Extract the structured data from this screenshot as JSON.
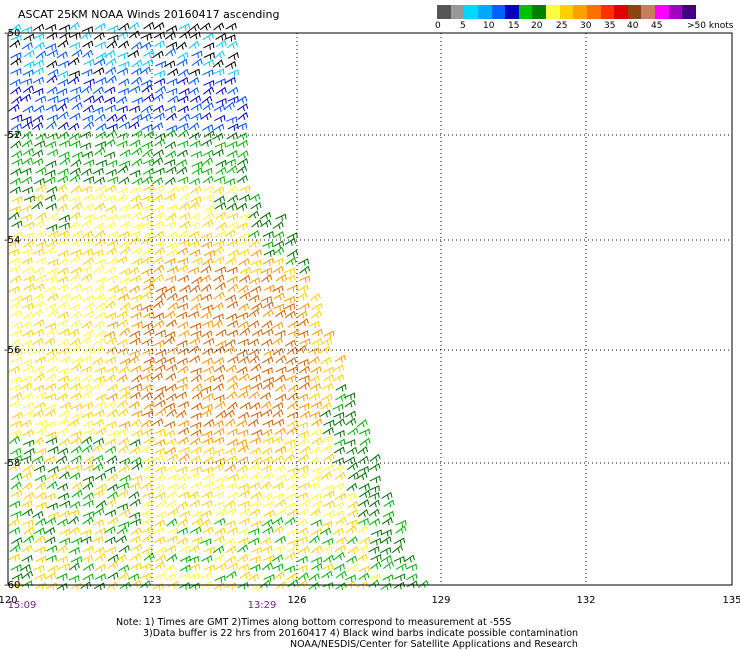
{
  "header": {
    "title": "ASCAT 25KM NOAA Winds 20160417 ascending"
  },
  "colorbar": {
    "labels": [
      "0",
      "5",
      "10",
      "15",
      "20",
      "25",
      "30",
      "35",
      "40",
      "45",
      ">50 knots"
    ],
    "colors": [
      "#555555",
      "#999999",
      "#00d8ff",
      "#00a8ff",
      "#0060ff",
      "#0000c0",
      "#00c000",
      "#008000",
      "#ffff40",
      "#ffd000",
      "#ffa000",
      "#ff7000",
      "#ff3000",
      "#e00000",
      "#8b4513",
      "#c08060",
      "#ff00ff",
      "#a000c0",
      "#400080"
    ]
  },
  "map": {
    "lat_labels": [
      "-50",
      "-52",
      "-54",
      "-56",
      "-58",
      "-60"
    ],
    "lon_labels": [
      "120",
      "123",
      "126",
      "129",
      "132",
      "135"
    ],
    "time_labels": [
      "15:09",
      "13:29"
    ],
    "wind_colors": {
      "black": "#000000",
      "light_blue": "#00c8ff",
      "blue": "#0050ff",
      "dark_blue": "#0000c0",
      "green": "#00b000",
      "dark_green": "#007000",
      "yellow": "#ffff30",
      "gold": "#ffd000",
      "orange": "#ff9800",
      "dark_orange": "#d06000"
    }
  },
  "notes": {
    "line1": "Note: 1) Times are GMT 2)Times along bottom correspond to measurement at -55S",
    "line2": "3)Data buffer is 22 hrs from 20160417 4) Black wind barbs indicate possible contamination",
    "line3": "NOAA/NESDIS/Center for Satellite Applications and Research"
  }
}
